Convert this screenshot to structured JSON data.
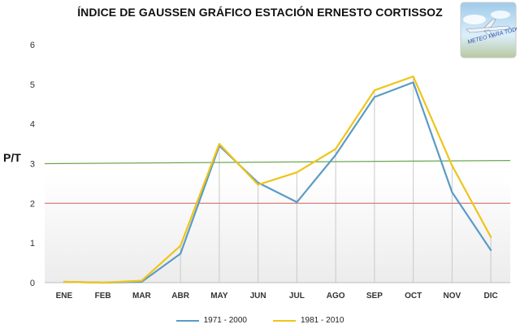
{
  "chart_data": {
    "type": "line",
    "title": "ÍNDICE DE GAUSSEN GRÁFICO ESTACIÓN ERNESTO CORTISSOZ",
    "ylabel": "P/T",
    "xlabel": "",
    "ylim": [
      0,
      6
    ],
    "yticks": [
      "0",
      "1",
      "2",
      "3",
      "4",
      "5",
      "6"
    ],
    "categories": [
      "ENE",
      "FEB",
      "MAR",
      "ABR",
      "MAY",
      "JUN",
      "JUL",
      "AGO",
      "SEP",
      "OCT",
      "NOV",
      "DIC"
    ],
    "series": [
      {
        "name": "1971 - 2000",
        "color": "#5b9bc4",
        "values": [
          0.02,
          0.0,
          0.02,
          0.73,
          3.45,
          2.52,
          2.03,
          3.22,
          4.68,
          5.05,
          2.28,
          0.82
        ]
      },
      {
        "name": "1981 - 2010",
        "color": "#f0c419",
        "values": [
          0.02,
          0.0,
          0.05,
          0.93,
          3.5,
          2.47,
          2.78,
          3.37,
          4.85,
          5.2,
          2.95,
          1.15
        ]
      }
    ],
    "reference_lines": [
      {
        "color": "#d9888a",
        "values": [
          2.0,
          2.0
        ]
      },
      {
        "color": "#6aa84f",
        "values": [
          3.0,
          3.08
        ]
      }
    ],
    "grid": false,
    "legend_position": "bottom"
  },
  "logo": {
    "text": "METEO PARA TODOS"
  }
}
